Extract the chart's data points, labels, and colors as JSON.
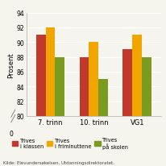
{
  "categories": [
    "7. trinn",
    "10. trinn",
    "VG1"
  ],
  "series": {
    "Trives\ni klassen": [
      91,
      88,
      89
    ],
    "Trives\ni friminuttene": [
      92,
      90,
      91
    ],
    "Trives\npå skolen": [
      88,
      85,
      88
    ]
  },
  "colors": [
    "#c0392b",
    "#f0a500",
    "#7a9a20"
  ],
  "ylim_min": 80,
  "ylim_max": 94,
  "yticks": [
    80,
    82,
    84,
    86,
    88,
    90,
    92,
    94
  ],
  "ylabel": "Prosent",
  "source": "Kilde: Elevundersøkelsen, Utdanningsdirektoratet.",
  "bar_width": 0.22,
  "background_color": "#f5f5ee",
  "legend_labels": [
    "Trives\ni klassen",
    "Trives\ni friminuttene",
    "Trives\npå skolen"
  ],
  "grid_color": "#ffffff",
  "axis_color": "#aaaaaa"
}
